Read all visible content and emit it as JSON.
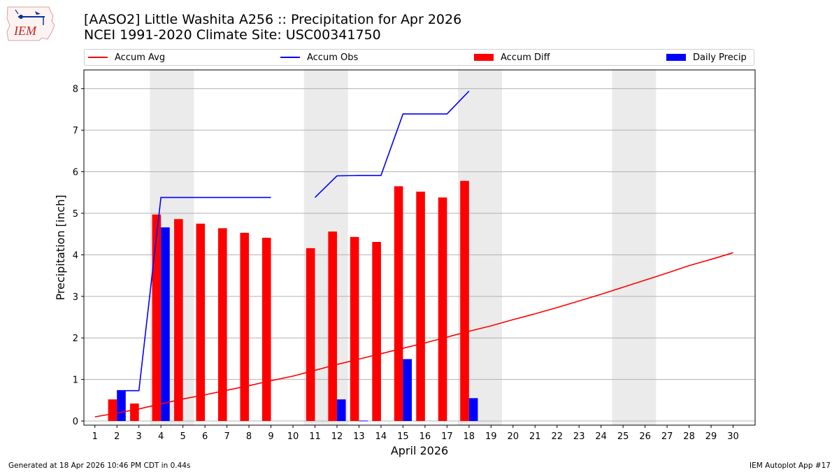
{
  "header": {
    "title_line1": "[AASO2] Little Washita A256 :: Precipitation for Apr 2026",
    "title_line2": "NCEI 1991-2020 Climate Site: USC00341750",
    "logo_text": "IEM"
  },
  "legend": [
    {
      "label": "Accum Avg",
      "color": "#ff0000",
      "kind": "line"
    },
    {
      "label": "Accum Obs",
      "color": "#0000ff",
      "kind": "line"
    },
    {
      "label": "Accum Diff",
      "color": "#ff0000",
      "kind": "bar"
    },
    {
      "label": "Daily Precip",
      "color": "#0000ff",
      "kind": "bar"
    }
  ],
  "footer": {
    "left": "Generated at 18 Apr 2026 10:46 PM CDT in 0.44s",
    "right": "IEM Autoplot App #17"
  },
  "chart_data": {
    "type": "bar",
    "xlabel": "April 2026",
    "ylabel": "Precipitation [inch]",
    "xlim": [
      0.5,
      31
    ],
    "ylim": [
      -0.1,
      8.45
    ],
    "yticks": [
      0,
      1,
      2,
      3,
      4,
      5,
      6,
      7,
      8
    ],
    "xticks": [
      1,
      2,
      3,
      4,
      5,
      6,
      7,
      8,
      9,
      10,
      11,
      12,
      13,
      14,
      15,
      16,
      17,
      18,
      19,
      20,
      21,
      22,
      23,
      24,
      25,
      26,
      27,
      28,
      29,
      30
    ],
    "grid": "y",
    "legend_position": "top",
    "weekend_shading": [
      [
        3.5,
        5.5
      ],
      [
        10.5,
        12.5
      ],
      [
        17.5,
        19.5
      ],
      [
        24.5,
        26.5
      ]
    ],
    "accum_avg": {
      "name": "Accum Avg",
      "x": [
        1,
        2,
        3,
        4,
        5,
        6,
        7,
        8,
        9,
        10,
        11,
        12,
        13,
        14,
        15,
        16,
        17,
        18,
        19,
        20,
        21,
        22,
        23,
        24,
        25,
        26,
        27,
        28,
        29,
        30
      ],
      "values": [
        0.1,
        0.19,
        0.29,
        0.41,
        0.53,
        0.63,
        0.74,
        0.85,
        0.97,
        1.08,
        1.22,
        1.36,
        1.49,
        1.62,
        1.75,
        1.88,
        2.02,
        2.16,
        2.29,
        2.44,
        2.58,
        2.73,
        2.89,
        3.05,
        3.22,
        3.39,
        3.56,
        3.74,
        3.89,
        4.05
      ]
    },
    "accum_obs": {
      "name": "Accum Obs",
      "segments": [
        {
          "x": [
            2,
            3,
            4,
            5,
            6,
            7,
            8,
            9
          ],
          "values": [
            0.73,
            0.73,
            5.38,
            5.38,
            5.38,
            5.38,
            5.38,
            5.38
          ]
        },
        {
          "x": [
            11,
            12,
            13,
            14,
            15,
            16,
            17,
            18
          ],
          "values": [
            5.38,
            5.9,
            5.91,
            5.91,
            7.39,
            7.39,
            7.39,
            7.94
          ]
        }
      ]
    },
    "accum_diff": {
      "name": "Accum Diff",
      "x": [
        2,
        3,
        4,
        5,
        6,
        7,
        8,
        9,
        11,
        12,
        13,
        14,
        15,
        16,
        17,
        18
      ],
      "values": [
        0.52,
        0.42,
        4.97,
        4.86,
        4.75,
        4.64,
        4.53,
        4.41,
        4.16,
        4.56,
        4.43,
        4.31,
        5.65,
        5.52,
        5.38,
        5.78
      ]
    },
    "daily_precip": {
      "name": "Daily Precip",
      "x": [
        2,
        4,
        12,
        13,
        15,
        18
      ],
      "values": [
        0.73,
        4.66,
        0.52,
        0.01,
        1.49,
        0.55
      ]
    }
  }
}
